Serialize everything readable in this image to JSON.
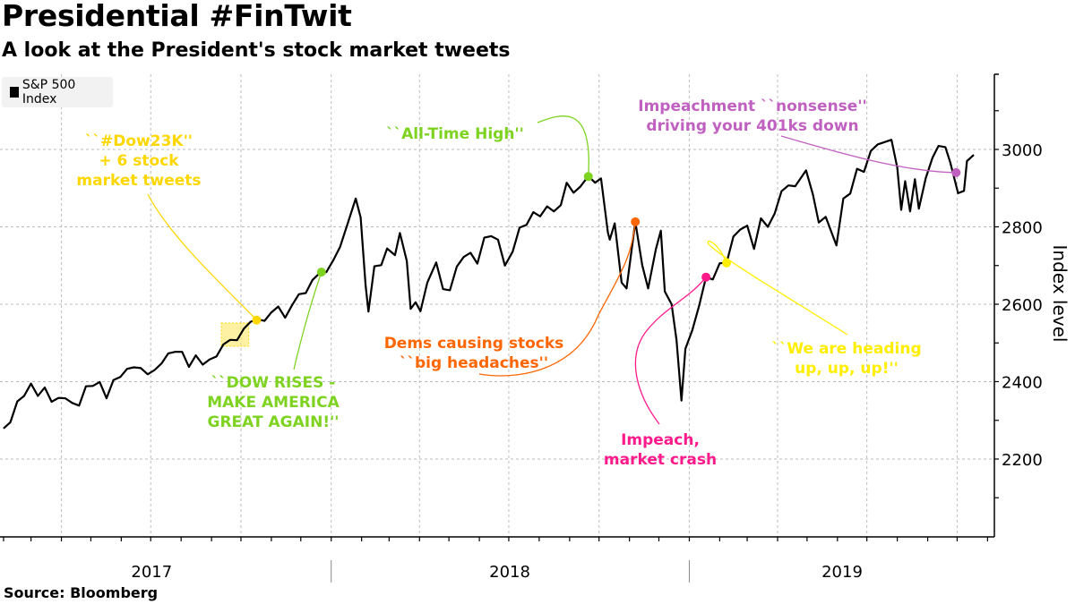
{
  "header": {
    "title": "Presidential #FinTwit",
    "subtitle": "A look at the President's stock market tweets"
  },
  "legend": {
    "label": "S&P 500 Index",
    "color": "#000000"
  },
  "source": "Source: Bloomberg",
  "chart_data": {
    "type": "line",
    "title": "Presidential #FinTwit",
    "subtitle": "A look at the President's stock market tweets",
    "xlabel": "",
    "ylabel": "Index level",
    "ylim": [
      2000,
      3200
    ],
    "yticks": [
      2200,
      2400,
      2600,
      2800,
      3000
    ],
    "ytick_labels": [
      "2200",
      "2400",
      "2600",
      "2800",
      "3000"
    ],
    "xlim": [
      "2016-12-01",
      "2019-10-25"
    ],
    "year_labels": [
      "2017",
      "2018",
      "2019"
    ],
    "grid": true,
    "legend_position": "top-left",
    "series": [
      {
        "name": "S&P 500 Index",
        "color": "#000000",
        "x": [
          "2017-02-01",
          "2017-02-08",
          "2017-02-15",
          "2017-02-22",
          "2017-03-01",
          "2017-03-08",
          "2017-03-15",
          "2017-03-22",
          "2017-03-29",
          "2017-04-05",
          "2017-04-12",
          "2017-04-19",
          "2017-04-26",
          "2017-05-03",
          "2017-05-10",
          "2017-05-17",
          "2017-05-24",
          "2017-05-31",
          "2017-06-07",
          "2017-06-14",
          "2017-06-21",
          "2017-06-28",
          "2017-07-05",
          "2017-07-12",
          "2017-07-19",
          "2017-07-26",
          "2017-08-02",
          "2017-08-09",
          "2017-08-16",
          "2017-08-23",
          "2017-08-30",
          "2017-09-06",
          "2017-09-13",
          "2017-09-20",
          "2017-09-27",
          "2017-10-04",
          "2017-10-11",
          "2017-10-18",
          "2017-10-25",
          "2017-11-01",
          "2017-11-08",
          "2017-11-15",
          "2017-11-22",
          "2017-11-29",
          "2017-12-06",
          "2017-12-13",
          "2017-12-20",
          "2017-12-27",
          "2018-01-03",
          "2018-01-10",
          "2018-01-17",
          "2018-01-26",
          "2018-01-31",
          "2018-02-05",
          "2018-02-08",
          "2018-02-14",
          "2018-02-21",
          "2018-02-27",
          "2018-03-07",
          "2018-03-12",
          "2018-03-19",
          "2018-03-23",
          "2018-03-28",
          "2018-04-02",
          "2018-04-09",
          "2018-04-18",
          "2018-04-25",
          "2018-05-02",
          "2018-05-09",
          "2018-05-16",
          "2018-05-23",
          "2018-05-30",
          "2018-06-06",
          "2018-06-13",
          "2018-06-20",
          "2018-06-27",
          "2018-07-05",
          "2018-07-12",
          "2018-07-19",
          "2018-07-26",
          "2018-08-02",
          "2018-08-09",
          "2018-08-16",
          "2018-08-23",
          "2018-08-29",
          "2018-09-05",
          "2018-09-12",
          "2018-09-20",
          "2018-09-27",
          "2018-10-03",
          "2018-10-10",
          "2018-10-12",
          "2018-10-17",
          "2018-10-24",
          "2018-10-29",
          "2018-11-07",
          "2018-11-14",
          "2018-11-20",
          "2018-11-28",
          "2018-12-03",
          "2018-12-07",
          "2018-12-14",
          "2018-12-19",
          "2018-12-24",
          "2018-12-28",
          "2019-01-04",
          "2019-01-11",
          "2019-01-18",
          "2019-01-25",
          "2019-02-01",
          "2019-02-08",
          "2019-02-15",
          "2019-02-22",
          "2019-03-01",
          "2019-03-08",
          "2019-03-15",
          "2019-03-22",
          "2019-03-29",
          "2019-04-05",
          "2019-04-12",
          "2019-04-19",
          "2019-04-30",
          "2019-05-07",
          "2019-05-13",
          "2019-05-20",
          "2019-05-31",
          "2019-06-07",
          "2019-06-14",
          "2019-06-21",
          "2019-06-28",
          "2019-07-05",
          "2019-07-12",
          "2019-07-26",
          "2019-08-01",
          "2019-08-05",
          "2019-08-09",
          "2019-08-14",
          "2019-08-19",
          "2019-08-23",
          "2019-08-30",
          "2019-09-06",
          "2019-09-12",
          "2019-09-19",
          "2019-09-24",
          "2019-10-02",
          "2019-10-08",
          "2019-10-11",
          "2019-10-18"
        ],
        "values": [
          2279,
          2295,
          2349,
          2363,
          2395,
          2363,
          2385,
          2348,
          2358,
          2357,
          2345,
          2338,
          2388,
          2389,
          2399,
          2357,
          2404,
          2412,
          2433,
          2437,
          2435,
          2419,
          2430,
          2447,
          2473,
          2477,
          2477,
          2438,
          2468,
          2444,
          2457,
          2465,
          2496,
          2508,
          2507,
          2537,
          2555,
          2561,
          2557,
          2579,
          2594,
          2565,
          2597,
          2626,
          2629,
          2663,
          2680,
          2683,
          2713,
          2748,
          2802,
          2873,
          2824,
          2649,
          2581,
          2698,
          2701,
          2744,
          2727,
          2784,
          2712,
          2588,
          2605,
          2582,
          2656,
          2708,
          2639,
          2636,
          2697,
          2722,
          2733,
          2705,
          2772,
          2776,
          2767,
          2700,
          2736,
          2798,
          2805,
          2838,
          2827,
          2853,
          2840,
          2856,
          2914,
          2888,
          2904,
          2931,
          2914,
          2925,
          2785,
          2767,
          2809,
          2656,
          2641,
          2813,
          2701,
          2641,
          2743,
          2790,
          2633,
          2600,
          2507,
          2351,
          2485,
          2532,
          2596,
          2670,
          2664,
          2706,
          2707,
          2775,
          2793,
          2803,
          2743,
          2822,
          2800,
          2834,
          2892,
          2907,
          2905,
          2946,
          2884,
          2811,
          2826,
          2752,
          2873,
          2886,
          2950,
          2942,
          2996,
          3013,
          3025,
          2953,
          2844,
          2918,
          2840,
          2923,
          2847,
          2926,
          2979,
          3009,
          3006,
          2966,
          2887,
          2893,
          2970,
          2986
        ]
      }
    ],
    "annotations": [
      {
        "label": "``#Dow23K''\n+ 6 stock\nmarket tweets",
        "lines": [
          "``#Dow23K''",
          "+ 6 stock",
          "market tweets"
        ],
        "date": "2017-10-17",
        "value": 2559,
        "color": "#ffd700",
        "highlight_range": [
          "2017-09-11",
          "2017-10-09"
        ]
      },
      {
        "label": "``DOW RISES -\nMAKE AMERICA\nGREAT AGAIN!''",
        "lines": [
          "``DOW RISES -",
          "MAKE AMERICA",
          "GREAT AGAIN!''"
        ],
        "date": "2017-12-22",
        "value": 2683,
        "color": "#7ed321"
      },
      {
        "label": "``All-Time High''",
        "lines": [
          "``All-Time High''"
        ],
        "date": "2018-09-20",
        "value": 2930,
        "color": "#7ed321"
      },
      {
        "label": "Dems causing stocks\n``big headaches''",
        "lines": [
          "Dems causing stocks",
          "``big headaches''"
        ],
        "date": "2018-11-07",
        "value": 2813,
        "color": "#ff6600"
      },
      {
        "label": "Impeach,\nmarket crash",
        "lines": [
          "Impeach,",
          "market crash"
        ],
        "date": "2019-01-18",
        "value": 2670,
        "color": "#ff1a8c"
      },
      {
        "label": "``We are heading\nup, up, up!''",
        "lines": [
          "``We are heading",
          "up, up, up!''"
        ],
        "date": "2019-02-08",
        "value": 2707,
        "color": "#ffee00"
      },
      {
        "label": "Impeachment ``nonsense''\ndriving your 401ks down",
        "lines": [
          "Impeachment ``nonsense''",
          "driving your 401ks down"
        ],
        "date": "2019-09-30",
        "value": 2940,
        "color": "#c060c0"
      }
    ]
  }
}
